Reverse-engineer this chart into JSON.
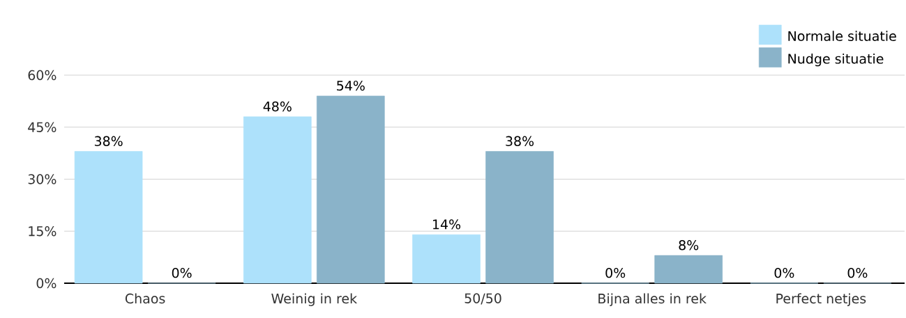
{
  "chart_data": {
    "type": "bar",
    "categories": [
      "Chaos",
      "Weinig in rek",
      "50/50",
      "Bijna alles in rek",
      "Perfect netjes"
    ],
    "series": [
      {
        "name": "Normale situatie",
        "color": "#ade1fb",
        "values": [
          38,
          48,
          14,
          0,
          0
        ],
        "value_labels": [
          "38%",
          "48%",
          "14%",
          "0%",
          "0%"
        ]
      },
      {
        "name": "Nudge situatie",
        "color": "#8ab3c9",
        "values": [
          0,
          54,
          38,
          8,
          0
        ],
        "value_labels": [
          "0%",
          "54%",
          "38%",
          "8%",
          "0%"
        ]
      }
    ],
    "ylim": [
      0,
      60
    ],
    "yticks": [
      {
        "value": 0,
        "label": "0%"
      },
      {
        "value": 15,
        "label": "15%"
      },
      {
        "value": 30,
        "label": "30%"
      },
      {
        "value": 45,
        "label": "45%"
      },
      {
        "value": 60,
        "label": "60%"
      }
    ],
    "grid": "y",
    "legend": "top right"
  }
}
